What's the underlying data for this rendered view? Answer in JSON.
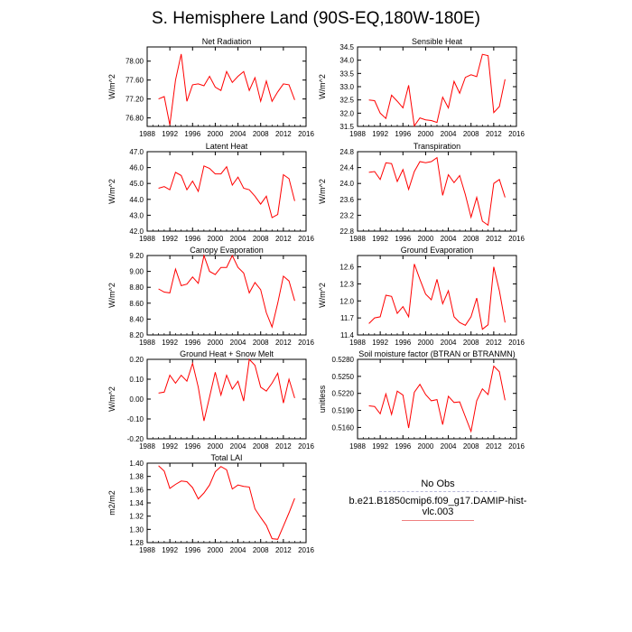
{
  "title": "S. Hemisphere Land (90S-EQ,180W-180E)",
  "colors": {
    "series": "#ff0000",
    "axis": "#000000",
    "legend_obs": "#b8b8d8",
    "legend_case": "#f08080"
  },
  "legend": {
    "obs_label": "No Obs",
    "case_label": "b.e21.B1850cmip6.f09_g17.DAMIP-hist-vlc.003"
  },
  "chart_data": [
    {
      "type": "line",
      "title": "Net Radiation",
      "ylabel": "W/m^2",
      "xlim": [
        1988,
        2016
      ],
      "x_ticks": [
        "1988",
        "1992",
        "1996",
        "2000",
        "2004",
        "2008",
        "2012",
        "2016"
      ],
      "ylim": [
        76.62,
        78.3
      ],
      "y_ticks": [
        "76.80",
        "77.20",
        "77.60",
        "78.00"
      ],
      "series": [
        {
          "x": [
            1990,
            1991,
            1992,
            1993,
            1994,
            1995,
            1996,
            1997,
            1998,
            1999,
            2000,
            2001,
            2002,
            2003,
            2004,
            2005,
            2006,
            2007,
            2008,
            2009,
            2010,
            2011,
            2012,
            2013,
            2014
          ],
          "values": [
            77.2,
            77.25,
            76.65,
            77.6,
            78.15,
            77.15,
            77.5,
            77.52,
            77.48,
            77.68,
            77.45,
            77.38,
            77.78,
            77.55,
            77.68,
            77.78,
            77.38,
            77.65,
            77.15,
            77.58,
            77.15,
            77.35,
            77.52,
            77.5,
            77.18
          ]
        }
      ]
    },
    {
      "type": "line",
      "title": "Sensible Heat",
      "ylabel": "W/m^2",
      "xlim": [
        1988,
        2016
      ],
      "x_ticks": [
        "1988",
        "1992",
        "1996",
        "2000",
        "2004",
        "2008",
        "2012",
        "2016"
      ],
      "ylim": [
        31.5,
        34.5
      ],
      "y_ticks": [
        "31.5",
        "32.0",
        "32.5",
        "33.0",
        "33.5",
        "34.0",
        "34.5"
      ],
      "series": [
        {
          "x": [
            1990,
            1991,
            1992,
            1993,
            1994,
            1995,
            1996,
            1997,
            1998,
            1999,
            2000,
            2001,
            2002,
            2003,
            2004,
            2005,
            2006,
            2007,
            2008,
            2009,
            2010,
            2011,
            2012,
            2013,
            2014
          ],
          "values": [
            32.5,
            32.47,
            32.0,
            31.8,
            32.68,
            32.45,
            32.2,
            33.05,
            31.52,
            31.82,
            31.75,
            31.72,
            31.65,
            32.6,
            32.2,
            33.2,
            32.75,
            33.35,
            33.45,
            33.38,
            34.22,
            34.17,
            32.02,
            32.25,
            33.28
          ]
        }
      ]
    },
    {
      "type": "line",
      "title": "Latent Heat",
      "ylabel": "W/m^2",
      "xlim": [
        1988,
        2016
      ],
      "x_ticks": [
        "1988",
        "1992",
        "1996",
        "2000",
        "2004",
        "2008",
        "2012",
        "2016"
      ],
      "ylim": [
        42.0,
        47.0
      ],
      "y_ticks": [
        "42.0",
        "43.0",
        "44.0",
        "45.0",
        "46.0",
        "47.0"
      ],
      "series": [
        {
          "x": [
            1990,
            1991,
            1992,
            1993,
            1994,
            1995,
            1996,
            1997,
            1998,
            1999,
            2000,
            2001,
            2002,
            2003,
            2004,
            2005,
            2006,
            2007,
            2008,
            2009,
            2010,
            2011,
            2012,
            2013,
            2014
          ],
          "values": [
            44.7,
            44.8,
            44.6,
            45.7,
            45.5,
            44.6,
            45.15,
            44.5,
            46.1,
            45.95,
            45.6,
            45.6,
            46.05,
            44.9,
            45.4,
            44.7,
            44.6,
            44.2,
            43.7,
            44.2,
            42.85,
            43.05,
            45.55,
            45.3,
            43.9
          ]
        }
      ]
    },
    {
      "type": "line",
      "title": "Transpiration",
      "ylabel": "W/m^2",
      "xlim": [
        1988,
        2016
      ],
      "x_ticks": [
        "1988",
        "1992",
        "1996",
        "2000",
        "2004",
        "2008",
        "2012",
        "2016"
      ],
      "ylim": [
        22.8,
        24.8
      ],
      "y_ticks": [
        "22.8",
        "23.2",
        "23.6",
        "24.0",
        "24.4",
        "24.8"
      ],
      "series": [
        {
          "x": [
            1990,
            1991,
            1992,
            1993,
            1994,
            1995,
            1996,
            1997,
            1998,
            1999,
            2000,
            2001,
            2002,
            2003,
            2004,
            2005,
            2006,
            2007,
            2008,
            2009,
            2010,
            2011,
            2012,
            2013,
            2014
          ],
          "values": [
            24.28,
            24.3,
            24.1,
            24.52,
            24.5,
            24.05,
            24.35,
            23.85,
            24.3,
            24.55,
            24.52,
            24.55,
            24.65,
            23.7,
            24.22,
            24.02,
            24.2,
            23.72,
            23.15,
            23.65,
            23.05,
            22.95,
            24.0,
            24.1,
            23.65
          ]
        }
      ]
    },
    {
      "type": "line",
      "title": "Canopy Evaporation",
      "ylabel": "W/m^2",
      "xlim": [
        1988,
        2016
      ],
      "x_ticks": [
        "1988",
        "1992",
        "1996",
        "2000",
        "2004",
        "2008",
        "2012",
        "2016"
      ],
      "ylim": [
        8.2,
        9.2
      ],
      "y_ticks": [
        "8.20",
        "8.40",
        "8.60",
        "8.80",
        "9.00",
        "9.20"
      ],
      "series": [
        {
          "x": [
            1990,
            1991,
            1992,
            1993,
            1994,
            1995,
            1996,
            1997,
            1998,
            1999,
            2000,
            2001,
            2002,
            2003,
            2004,
            2005,
            2006,
            2007,
            2008,
            2009,
            2010,
            2011,
            2012,
            2013,
            2014
          ],
          "values": [
            8.78,
            8.74,
            8.73,
            9.03,
            8.82,
            8.84,
            8.93,
            8.85,
            9.2,
            9.0,
            8.96,
            9.05,
            9.05,
            9.2,
            9.05,
            8.98,
            8.73,
            8.86,
            8.77,
            8.48,
            8.3,
            8.6,
            8.94,
            8.88,
            8.63
          ]
        }
      ]
    },
    {
      "type": "line",
      "title": "Ground Evaporation",
      "ylabel": "W/m^2",
      "xlim": [
        1988,
        2016
      ],
      "x_ticks": [
        "1988",
        "1992",
        "1996",
        "2000",
        "2004",
        "2008",
        "2012",
        "2016"
      ],
      "ylim": [
        11.4,
        12.8
      ],
      "y_ticks": [
        "11.4",
        "11.7",
        "12.0",
        "12.3",
        "12.6"
      ],
      "series": [
        {
          "x": [
            1990,
            1991,
            1992,
            1993,
            1994,
            1995,
            1996,
            1997,
            1998,
            1999,
            2000,
            2001,
            2002,
            2003,
            2004,
            2005,
            2006,
            2007,
            2008,
            2009,
            2010,
            2011,
            2012,
            2013,
            2014
          ],
          "values": [
            11.6,
            11.7,
            11.72,
            12.1,
            12.08,
            11.78,
            11.9,
            11.72,
            12.65,
            12.38,
            12.12,
            12.02,
            12.38,
            11.95,
            12.18,
            11.72,
            11.62,
            11.57,
            11.72,
            12.05,
            11.5,
            11.58,
            12.6,
            12.18,
            11.62
          ]
        }
      ]
    },
    {
      "type": "line",
      "title": "Ground Heat + Snow Melt",
      "ylabel": "W/m^2",
      "xlim": [
        1988,
        2016
      ],
      "x_ticks": [
        "1988",
        "1992",
        "1996",
        "2000",
        "2004",
        "2008",
        "2012",
        "2016"
      ],
      "ylim": [
        -0.2,
        0.2
      ],
      "y_ticks": [
        "-0.20",
        "-0.10",
        "0.00",
        "0.10",
        "0.20"
      ],
      "series": [
        {
          "x": [
            1990,
            1991,
            1992,
            1993,
            1994,
            1995,
            1996,
            1997,
            1998,
            1999,
            2000,
            2001,
            2002,
            2003,
            2004,
            2005,
            2006,
            2007,
            2008,
            2009,
            2010,
            2011,
            2012,
            2013,
            2014
          ],
          "values": [
            0.03,
            0.035,
            0.12,
            0.08,
            0.12,
            0.09,
            0.18,
            0.06,
            -0.11,
            0.01,
            0.135,
            0.02,
            0.12,
            0.05,
            0.09,
            -0.01,
            0.2,
            0.17,
            0.06,
            0.04,
            0.08,
            0.13,
            -0.02,
            0.1,
            0.005
          ]
        }
      ]
    },
    {
      "type": "line",
      "title": "Soil moisture factor (BTRAN or BTRANMN)",
      "ylabel": "unitless",
      "xlim": [
        1988,
        2016
      ],
      "x_ticks": [
        "1988",
        "1992",
        "1996",
        "2000",
        "2004",
        "2008",
        "2012",
        "2016"
      ],
      "ylim": [
        0.514,
        0.528
      ],
      "y_ticks": [
        "0.5160",
        "0.5190",
        "0.5220",
        "0.5250",
        "0.5280"
      ],
      "series": [
        {
          "x": [
            1990,
            1991,
            1992,
            1993,
            1994,
            1995,
            1996,
            1997,
            1998,
            1999,
            2000,
            2001,
            2002,
            2003,
            2004,
            2005,
            2006,
            2007,
            2008,
            2009,
            2010,
            2011,
            2012,
            2013,
            2014
          ],
          "values": [
            0.5198,
            0.5197,
            0.5184,
            0.5219,
            0.5183,
            0.5224,
            0.5217,
            0.5159,
            0.5222,
            0.5236,
            0.5218,
            0.5207,
            0.5209,
            0.5165,
            0.5215,
            0.5204,
            0.5205,
            0.5179,
            0.5153,
            0.5207,
            0.5228,
            0.5218,
            0.5268,
            0.5258,
            0.5208
          ]
        }
      ]
    },
    {
      "type": "line",
      "title": "Total LAI",
      "ylabel": "m2/m2",
      "xlim": [
        1988,
        2016
      ],
      "x_ticks": [
        "1988",
        "1992",
        "1996",
        "2000",
        "2004",
        "2008",
        "2012",
        "2016"
      ],
      "ylim": [
        1.28,
        1.4
      ],
      "y_ticks": [
        "1.28",
        "1.30",
        "1.32",
        "1.34",
        "1.36",
        "1.38",
        "1.40"
      ],
      "series": [
        {
          "x": [
            1990,
            1991,
            1992,
            1993,
            1994,
            1995,
            1996,
            1997,
            1998,
            1999,
            2000,
            2001,
            2002,
            2003,
            2004,
            2005,
            2006,
            2007,
            2008,
            2009,
            2010,
            2011,
            2012,
            2013,
            2014
          ],
          "values": [
            1.396,
            1.388,
            1.362,
            1.368,
            1.373,
            1.372,
            1.363,
            1.346,
            1.355,
            1.367,
            1.387,
            1.395,
            1.39,
            1.361,
            1.367,
            1.365,
            1.364,
            1.331,
            1.318,
            1.306,
            1.286,
            1.285,
            1.305,
            1.325,
            1.347
          ]
        }
      ]
    }
  ]
}
